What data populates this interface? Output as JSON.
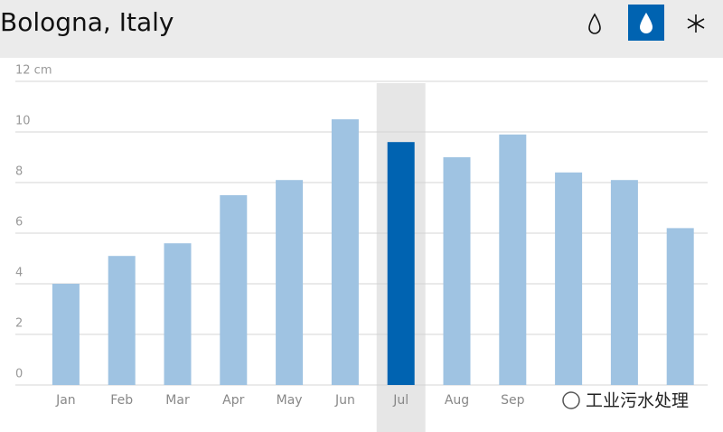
{
  "header": {
    "title": "Bologna, Italy"
  },
  "chart_data": {
    "type": "bar",
    "categories": [
      "Jan",
      "Feb",
      "Mar",
      "Apr",
      "May",
      "Jun",
      "Jul",
      "Aug",
      "Sep",
      null,
      null,
      null
    ],
    "values": [
      4.0,
      5.1,
      5.6,
      7.5,
      8.1,
      10.5,
      9.6,
      9.0,
      9.9,
      8.4,
      8.1,
      6.2
    ],
    "color": "#9fc3e2",
    "highlight_color": "#0063b1",
    "selected_index": 6,
    "ylim": [
      0,
      12
    ],
    "yticks": [
      0,
      2,
      4,
      6,
      8,
      10,
      {
        "value": 12,
        "label": "12 cm"
      }
    ],
    "grid": true
  },
  "watermark": "工业污水处理"
}
